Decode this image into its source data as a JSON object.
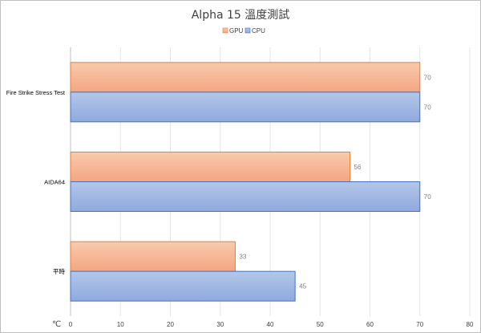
{
  "chart_data": {
    "type": "bar",
    "orientation": "horizontal",
    "title": "Alpha 15 溫度測試",
    "categories": [
      "Fire Strike Stress Test",
      "AIDA64",
      "平時"
    ],
    "series": [
      {
        "name": "GPU",
        "values": [
          70,
          56,
          33
        ],
        "color": "#f4a582",
        "gradient_top": "#f8cbad",
        "border": "#ed7d31"
      },
      {
        "name": "CPU",
        "values": [
          70,
          70,
          45
        ],
        "color": "#8fa9e0",
        "gradient_top": "#b4c7e7",
        "border": "#4472c4"
      }
    ],
    "xlim": [
      0,
      80
    ],
    "xticks": [
      0,
      10,
      20,
      30,
      40,
      50,
      60,
      70,
      80
    ],
    "xlabel": "℃",
    "legend_position": "top",
    "grid": true
  }
}
